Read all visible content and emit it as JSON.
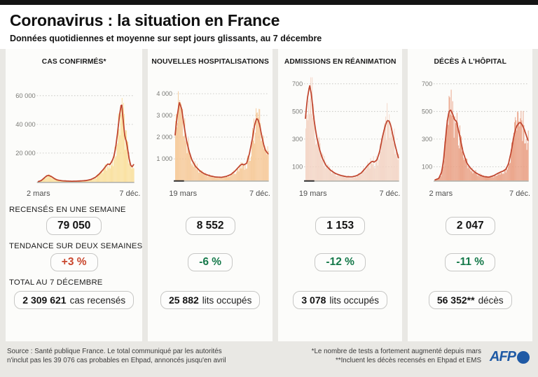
{
  "header": {
    "title": "Coronavirus : la situation en France",
    "subtitle": "Données quotidiennes et moyenne sur sept jours glissants, au 7 décembre"
  },
  "row_labels": {
    "week": "RECENSÉS EN UNE SEMAINE",
    "trend": "TENDANCE SUR DEUX SEMAINES",
    "total": "TOTAL AU 7 DÉCEMBRE"
  },
  "panels": [
    {
      "title": "CAS CONFIRMÉS*",
      "x_start": "2 mars",
      "x_end": "7 déc.",
      "week_value": "79 050",
      "trend_value": "+3 %",
      "trend_color": "#c9472e",
      "total_bold": "2 309 621",
      "total_rest": "cas recensés"
    },
    {
      "title": "NOUVELLES HOSPITALISATIONS",
      "x_start": "19 mars",
      "x_end": "7 déc.",
      "week_value": "8 552",
      "trend_value": "-6 %",
      "trend_color": "#15794a",
      "total_bold": "25 882",
      "total_rest": "lits occupés"
    },
    {
      "title": "ADMISSIONS EN RÉANIMATION",
      "x_start": "19 mars",
      "x_end": "7 déc.",
      "week_value": "1 153",
      "trend_value": "-12 %",
      "trend_color": "#15794a",
      "total_bold": "3 078",
      "total_rest": "lits occupés"
    },
    {
      "title": "DÉCÈS À L'HÔPITAL",
      "x_start": "2 mars",
      "x_end": "7 déc.",
      "week_value": "2 047",
      "trend_value": "-11 %",
      "trend_color": "#15794a",
      "total_bold": "56 352**",
      "total_rest": "décès"
    }
  ],
  "footer": {
    "source_line1": "Source : Santé publique France. Le total communiqué par les autorités",
    "source_line2": "n'inclut pas les 39 076 cas probables en Ehpad, annoncés jusqu'en avril",
    "note_line1": "*Le nombre de tests a fortement augmenté depuis mars",
    "note_line2": "**Incluent les décès recensés en Ehpad et EMS",
    "logo_text": "AFP",
    "logo_color": "#1f5aa5"
  },
  "chart_data": [
    {
      "type": "area",
      "title": "CAS CONFIRMÉS*",
      "x_start": "2 mars",
      "x_end": "7 déc.",
      "ylim": [
        0,
        76000
      ],
      "yticks": [
        20000,
        40000,
        60000
      ],
      "ytick_labels": [
        "20 000",
        "40 000",
        "60 000"
      ],
      "bar_color": "#f9df9a",
      "line_color": "#c0462f",
      "baseline_lead": false,
      "legend": "barres : valeurs quotidiennes, courbe : moyenne sur 7 jours",
      "series": [
        {
          "name": "moyenne sur 7 jours",
          "x": [
            0,
            0.03,
            0.06,
            0.09,
            0.11,
            0.14,
            0.17,
            0.2,
            0.25,
            0.3,
            0.35,
            0.4,
            0.45,
            0.5,
            0.55,
            0.6,
            0.64,
            0.68,
            0.71,
            0.73,
            0.75,
            0.77,
            0.79,
            0.81,
            0.83,
            0.85,
            0.865,
            0.875,
            0.885,
            0.895,
            0.91,
            0.925,
            0.94,
            0.955,
            0.97,
            0.985,
            1
          ],
          "y": [
            200,
            900,
            2600,
            4300,
            4500,
            3600,
            2200,
            1300,
            750,
            550,
            450,
            500,
            650,
            900,
            1600,
            3200,
            5500,
            8500,
            11000,
            12500,
            12000,
            14000,
            17000,
            23000,
            33000,
            45000,
            52000,
            55000,
            47000,
            40000,
            31000,
            28000,
            22000,
            15500,
            11500,
            10500,
            12000
          ]
        }
      ]
    },
    {
      "type": "area",
      "title": "NOUVELLES HOSPITALISATIONS",
      "x_start": "19 mars",
      "x_end": "7 déc.",
      "ylim": [
        0,
        4900
      ],
      "yticks": [
        1000,
        2000,
        3000,
        4000
      ],
      "ytick_labels": [
        "1 000",
        "2 000",
        "3 000",
        "4 000"
      ],
      "bar_color": "#f6c795",
      "line_color": "#c0462f",
      "baseline_lead": true,
      "legend": "barres : valeurs quotidiennes, courbe : moyenne sur 7 jours",
      "series": [
        {
          "name": "moyenne sur 7 jours",
          "x": [
            0,
            0.02,
            0.045,
            0.07,
            0.09,
            0.12,
            0.15,
            0.18,
            0.22,
            0.27,
            0.32,
            0.38,
            0.44,
            0.5,
            0.55,
            0.6,
            0.64,
            0.67,
            0.7,
            0.72,
            0.74,
            0.77,
            0.8,
            0.83,
            0.855,
            0.875,
            0.89,
            0.91,
            0.93,
            0.95,
            0.97,
            1
          ],
          "y": [
            2100,
            2900,
            3600,
            3300,
            2700,
            1900,
            1350,
            950,
            650,
            430,
            300,
            210,
            160,
            150,
            190,
            280,
            420,
            560,
            700,
            760,
            720,
            800,
            1250,
            1900,
            2550,
            2850,
            2820,
            2550,
            2100,
            1700,
            1400,
            1230
          ]
        }
      ]
    },
    {
      "type": "area",
      "title": "ADMISSIONS EN RÉANIMATION",
      "x_start": "19 mars",
      "x_end": "7 déc.",
      "ylim": [
        0,
        770
      ],
      "yticks": [
        100,
        300,
        500,
        700
      ],
      "ytick_labels": [
        "100",
        "300",
        "500",
        "700"
      ],
      "bar_color": "#f3d3c3",
      "line_color": "#c0462f",
      "baseline_lead": true,
      "legend": "barres : valeurs quotidiennes, courbe : moyenne sur 7 jours",
      "series": [
        {
          "name": "moyenne sur 7 jours",
          "x": [
            0,
            0.02,
            0.045,
            0.065,
            0.09,
            0.12,
            0.15,
            0.18,
            0.22,
            0.27,
            0.32,
            0.38,
            0.44,
            0.5,
            0.55,
            0.6,
            0.64,
            0.67,
            0.7,
            0.72,
            0.74,
            0.77,
            0.8,
            0.83,
            0.86,
            0.88,
            0.9,
            0.92,
            0.94,
            0.96,
            0.98,
            1
          ],
          "y": [
            450,
            590,
            690,
            620,
            450,
            320,
            230,
            165,
            110,
            75,
            52,
            37,
            28,
            27,
            35,
            55,
            85,
            110,
            130,
            140,
            133,
            150,
            215,
            320,
            400,
            435,
            430,
            395,
            330,
            270,
            215,
            165
          ]
        }
      ]
    },
    {
      "type": "area",
      "title": "DÉCÈS À L'HÔPITAL",
      "x_start": "2 mars",
      "x_end": "7 déc.",
      "ylim": [
        0,
        770
      ],
      "yticks": [
        100,
        300,
        500,
        700
      ],
      "ytick_labels": [
        "100",
        "300",
        "500",
        "700"
      ],
      "bar_color": "#e99d80",
      "line_color": "#c0462f",
      "baseline_lead": false,
      "legend": "barres : valeurs quotidiennes, courbe : moyenne sur 7 jours",
      "series": [
        {
          "name": "moyenne sur 7 jours",
          "x": [
            0,
            0.04,
            0.07,
            0.09,
            0.11,
            0.13,
            0.15,
            0.17,
            0.19,
            0.21,
            0.23,
            0.26,
            0.3,
            0.34,
            0.38,
            0.43,
            0.48,
            0.53,
            0.58,
            0.63,
            0.67,
            0.7,
            0.73,
            0.76,
            0.79,
            0.82,
            0.85,
            0.875,
            0.9,
            0.92,
            0.94,
            0.96,
            0.98,
            1
          ],
          "y": [
            5,
            15,
            60,
            140,
            280,
            420,
            500,
            510,
            480,
            440,
            430,
            340,
            210,
            130,
            90,
            60,
            40,
            28,
            25,
            35,
            50,
            60,
            68,
            80,
            120,
            210,
            330,
            390,
            415,
            420,
            400,
            370,
            330,
            290
          ]
        }
      ]
    }
  ]
}
